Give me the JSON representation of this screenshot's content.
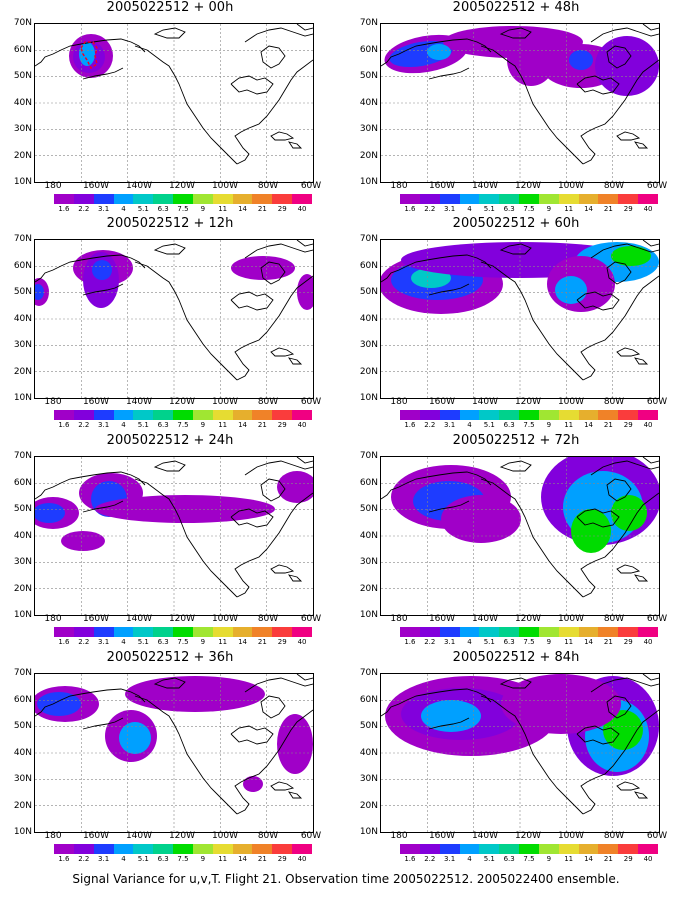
{
  "panels": [
    {
      "title": "2005022512 + 00h"
    },
    {
      "title": "2005022512 + 48h"
    },
    {
      "title": "2005022512 + 12h"
    },
    {
      "title": "2005022512 + 60h"
    },
    {
      "title": "2005022512 + 24h"
    },
    {
      "title": "2005022512 + 72h"
    },
    {
      "title": "2005022512 + 36h"
    },
    {
      "title": "2005022512 + 84h"
    }
  ],
  "axes": {
    "lat_labels": [
      "70N",
      "60N",
      "50N",
      "40N",
      "30N",
      "20N",
      "10N"
    ],
    "lon_labels": [
      "180",
      "160W",
      "140W",
      "120W",
      "100W",
      "80W",
      "60W"
    ]
  },
  "colorbar": {
    "labels": [
      "1.6",
      "2.2",
      "3.1",
      "4",
      "5.1",
      "6.3",
      "7.5",
      "9",
      "11",
      "14",
      "21",
      "29",
      "40"
    ],
    "colors": [
      "#a000c8",
      "#8200dc",
      "#1e3cff",
      "#00a0ff",
      "#00c8c8",
      "#00d28c",
      "#00dc00",
      "#a0e632",
      "#e6dc32",
      "#e6af2d",
      "#f08228",
      "#fa3c3c",
      "#f00082"
    ]
  },
  "footer": "Signal Variance for u,v,T. Flight 21. Observation time 2005022512. 2005022400 ensemble."
}
